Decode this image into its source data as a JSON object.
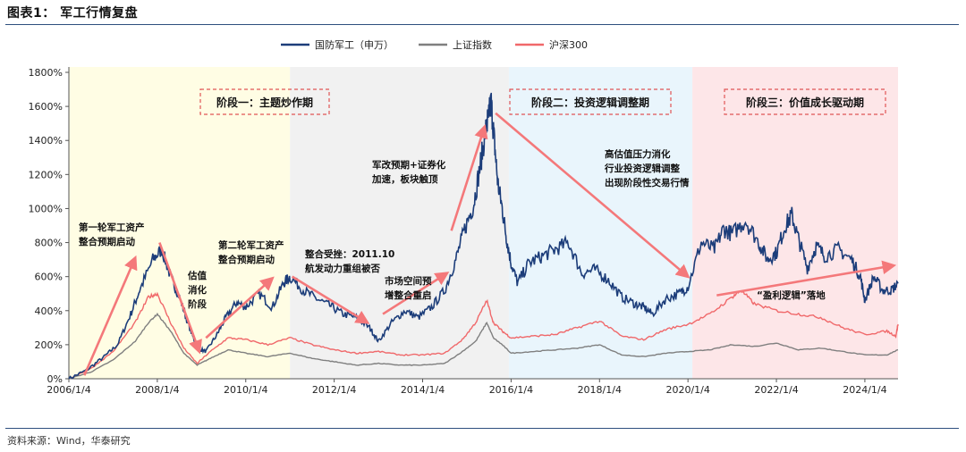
{
  "figure": {
    "title": "图表1： 军工行情复盘",
    "source": "资料来源：Wind，华泰研究"
  },
  "colors": {
    "junggong": "#1c3d7a",
    "shangzheng": "#7f7f7f",
    "hushen": "#f0686a",
    "arrow": "#f4787a",
    "phase1_bg": "#fffde4",
    "phase_mid_bg": "#f1f1f1",
    "phase2_bg": "#e9f5fc",
    "phase3_bg": "#fde6e8",
    "box_border": "#e05555"
  },
  "chart_data": {
    "type": "line",
    "title": "",
    "xlabel": "",
    "ylabel": "",
    "ylim": [
      0,
      1800
    ],
    "y_ticks": [
      "0%",
      "200%",
      "400%",
      "600%",
      "800%",
      "1000%",
      "1200%",
      "1400%",
      "1600%",
      "1800%"
    ],
    "y_tick_values": [
      0,
      200,
      400,
      600,
      800,
      1000,
      1200,
      1400,
      1600,
      1800
    ],
    "x_range": [
      2006.0,
      2024.75
    ],
    "x_ticks": [
      "2006/1/4",
      "2008/1/4",
      "2010/1/4",
      "2012/1/4",
      "2014/1/4",
      "2016/1/4",
      "2018/1/4",
      "2020/1/4",
      "2022/1/4",
      "2024/1/4"
    ],
    "x_tick_values": [
      2006.0,
      2008.0,
      2010.0,
      2012.0,
      2014.0,
      2016.0,
      2018.0,
      2020.0,
      2022.0,
      2024.0
    ],
    "legend": [
      "国防军工（申万）",
      "上证指数",
      "沪深300"
    ],
    "series": [
      {
        "name": "国防军工（申万）",
        "x": [
          2006.0,
          2006.4,
          2006.8,
          2007.1,
          2007.4,
          2007.6,
          2007.9,
          2008.1,
          2008.3,
          2008.5,
          2008.7,
          2008.9,
          2009.1,
          2009.35,
          2009.55,
          2009.8,
          2010.0,
          2010.3,
          2010.6,
          2010.85,
          2011.0,
          2011.3,
          2011.6,
          2011.9,
          2012.2,
          2012.5,
          2012.8,
          2013.0,
          2013.3,
          2013.6,
          2013.9,
          2014.2,
          2014.5,
          2014.75,
          2014.95,
          2015.15,
          2015.3,
          2015.42,
          2015.5,
          2015.55,
          2015.62,
          2015.7,
          2015.8,
          2015.9,
          2016.0,
          2016.15,
          2016.4,
          2016.7,
          2017.0,
          2017.3,
          2017.6,
          2017.9,
          2018.2,
          2018.5,
          2018.8,
          2019.0,
          2019.2,
          2019.5,
          2019.8,
          2020.0,
          2020.3,
          2020.6,
          2020.8,
          2021.0,
          2021.3,
          2021.6,
          2021.8,
          2022.0,
          2022.2,
          2022.35,
          2022.5,
          2022.7,
          2022.9,
          2023.1,
          2023.4,
          2023.7,
          2023.9,
          2024.0,
          2024.2,
          2024.4,
          2024.6,
          2024.75
        ],
        "values": [
          0,
          50,
          130,
          200,
          380,
          520,
          700,
          760,
          600,
          480,
          320,
          180,
          160,
          260,
          360,
          450,
          420,
          500,
          420,
          560,
          600,
          520,
          470,
          430,
          380,
          360,
          300,
          220,
          330,
          400,
          360,
          420,
          520,
          700,
          880,
          1020,
          1250,
          1450,
          1550,
          1620,
          1400,
          1150,
          1000,
          820,
          680,
          560,
          680,
          720,
          760,
          800,
          620,
          640,
          580,
          480,
          440,
          420,
          380,
          470,
          500,
          540,
          800,
          760,
          880,
          850,
          930,
          800,
          700,
          740,
          900,
          960,
          820,
          650,
          780,
          720,
          760,
          700,
          600,
          460,
          600,
          520,
          520,
          560
        ]
      },
      {
        "name": "上证指数",
        "x": [
          2006.0,
          2006.5,
          2007.0,
          2007.5,
          2007.8,
          2008.0,
          2008.3,
          2008.6,
          2008.9,
          2009.2,
          2009.6,
          2010.0,
          2010.5,
          2011.0,
          2011.5,
          2012.0,
          2012.5,
          2013.0,
          2013.5,
          2014.0,
          2014.5,
          2014.9,
          2015.2,
          2015.45,
          2015.6,
          2015.8,
          2016.0,
          2016.5,
          2017.0,
          2017.5,
          2018.0,
          2018.5,
          2019.0,
          2019.5,
          2020.0,
          2020.5,
          2021.0,
          2021.5,
          2022.0,
          2022.5,
          2023.0,
          2023.5,
          2024.0,
          2024.5,
          2024.75
        ],
        "values": [
          0,
          40,
          110,
          220,
          330,
          380,
          280,
          150,
          80,
          120,
          170,
          150,
          130,
          150,
          120,
          100,
          80,
          90,
          80,
          80,
          90,
          160,
          220,
          330,
          240,
          200,
          150,
          160,
          170,
          180,
          200,
          140,
          130,
          150,
          160,
          170,
          200,
          190,
          210,
          170,
          180,
          160,
          140,
          140,
          170
        ]
      },
      {
        "name": "沪深300",
        "x": [
          2006.0,
          2006.5,
          2007.0,
          2007.5,
          2007.8,
          2008.0,
          2008.3,
          2008.6,
          2008.9,
          2009.2,
          2009.6,
          2010.0,
          2010.5,
          2011.0,
          2011.5,
          2012.0,
          2012.5,
          2013.0,
          2013.5,
          2014.0,
          2014.5,
          2014.9,
          2015.2,
          2015.45,
          2015.6,
          2015.8,
          2016.0,
          2016.5,
          2017.0,
          2017.5,
          2018.0,
          2018.5,
          2019.0,
          2019.5,
          2020.0,
          2020.5,
          2021.0,
          2021.2,
          2021.5,
          2022.0,
          2022.5,
          2023.0,
          2023.5,
          2024.0,
          2024.5,
          2024.7,
          2024.75
        ],
        "values": [
          0,
          60,
          160,
          330,
          480,
          500,
          330,
          180,
          90,
          160,
          240,
          230,
          200,
          240,
          200,
          170,
          150,
          160,
          140,
          140,
          150,
          230,
          330,
          460,
          330,
          280,
          240,
          250,
          260,
          300,
          340,
          250,
          230,
          290,
          320,
          380,
          480,
          520,
          440,
          400,
          380,
          360,
          300,
          260,
          280,
          250,
          320
        ]
      }
    ],
    "annotations": {
      "phase1": "阶段一：主题炒作期",
      "phase2": "阶段二：投资逻辑调整期",
      "phase3": "阶段三：价值成长驱动期",
      "a1_l1": "第一轮军工资产",
      "a1_l2": "整合预期启动",
      "a2_l1": "估值",
      "a2_l2": "消化",
      "a2_l3": "阶段",
      "a3_l1": "第二轮军工资产",
      "a3_l2": "整合预期启动",
      "a4_l1": "整合受挫：2011.10",
      "a4_l2": "航发动力重组被否",
      "a5_l1": "市场空间预",
      "a5_l2": "增整合重启",
      "a6_l1": "军改预期+证券化",
      "a6_l2": "加速，板块触顶",
      "a7_l1": "高估值压力消化",
      "a7_l2": "行业投资逻辑调整",
      "a7_l3": "出现阶段性交易行情",
      "a8": "“盈利逻辑”落地"
    }
  }
}
